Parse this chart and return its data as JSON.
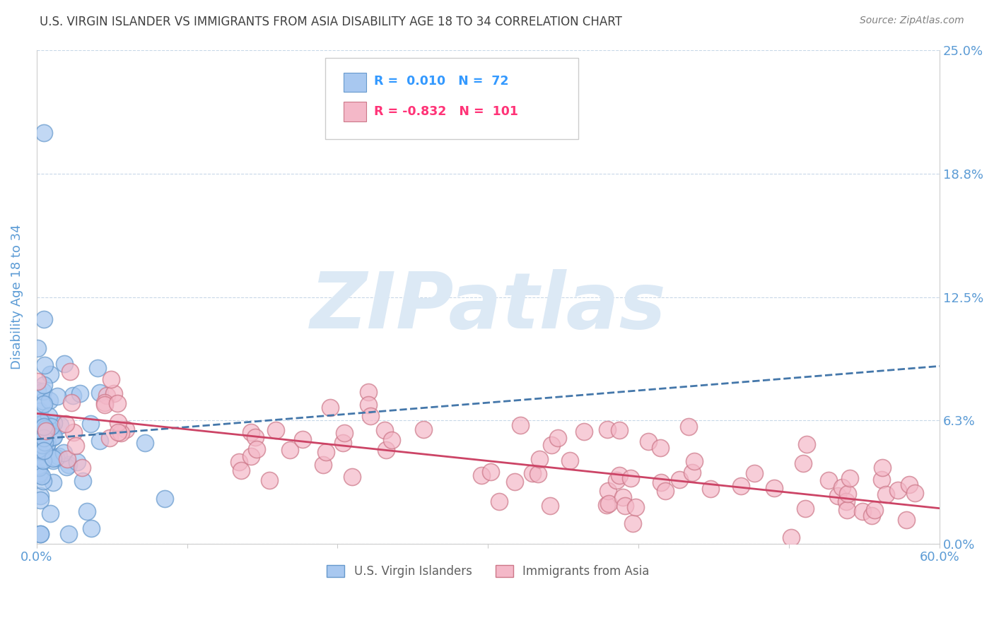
{
  "title": "U.S. VIRGIN ISLANDER VS IMMIGRANTS FROM ASIA DISABILITY AGE 18 TO 34 CORRELATION CHART",
  "source": "Source: ZipAtlas.com",
  "ylabel": "Disability Age 18 to 34",
  "xlim": [
    0.0,
    0.6
  ],
  "ylim": [
    0.0,
    0.25
  ],
  "yticks": [
    0.0,
    0.0625,
    0.125,
    0.1875,
    0.25
  ],
  "ytick_labels": [
    "0.0%",
    "6.3%",
    "12.5%",
    "18.8%",
    "25.0%"
  ],
  "xticks": [
    0.0,
    0.1,
    0.2,
    0.3,
    0.4,
    0.5,
    0.6
  ],
  "xtick_labels": [
    "0.0%",
    "",
    "",
    "",
    "",
    "",
    "60.0%"
  ],
  "title_color": "#404040",
  "axis_label_color": "#5b9bd5",
  "tick_label_color": "#5b9bd5",
  "source_color": "#808080",
  "watermark_text": "ZIPatlas",
  "watermark_color": "#dce9f5",
  "series1_name": "U.S. Virgin Islanders",
  "series1_color": "#a8c8f0",
  "series1_edge": "#6699cc",
  "series1_R": 0.01,
  "series1_N": 72,
  "series1_trendline_color": "#4477aa",
  "series2_name": "Immigrants from Asia",
  "series2_color": "#f4b8c8",
  "series2_edge": "#cc7788",
  "series2_R": -0.832,
  "series2_N": 101,
  "series2_trendline_color": "#cc4466",
  "legend_R1_color": "#3399ff",
  "legend_R2_color": "#ff3377",
  "background_color": "#ffffff",
  "grid_color": "#c8d8e8",
  "legend_border_color": "#cccccc",
  "seed": 42,
  "blue_trend_x0": 0.0,
  "blue_trend_y0": 0.053,
  "blue_trend_x1": 0.6,
  "blue_trend_y1": 0.09,
  "pink_trend_x0": 0.0,
  "pink_trend_y0": 0.066,
  "pink_trend_x1": 0.6,
  "pink_trend_y1": 0.018
}
